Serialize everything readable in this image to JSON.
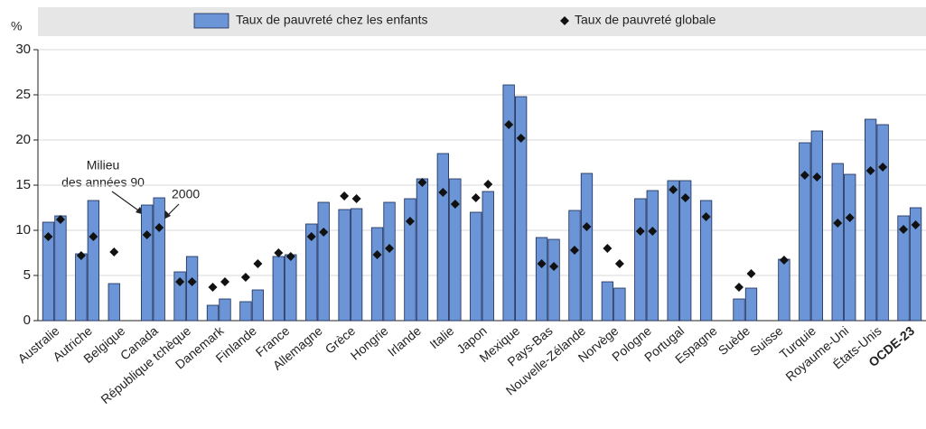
{
  "chart_data": {
    "type": "bar",
    "unit_label": "%",
    "categories": [
      "Australie",
      "Autriche",
      "Belgique",
      "Canada",
      "République tchèque",
      "Danemark",
      "Finlande",
      "France",
      "Allemagne",
      "Grèce",
      "Hongrie",
      "Irlande",
      "Italie",
      "Japon",
      "Mexique",
      "Pays-Bas",
      "Nouvelle-Zélande",
      "Norvège",
      "Pologne",
      "Portugal",
      "Espagne",
      "Suède",
      "Suisse",
      "Turquie",
      "Royaume-Uni",
      "États-Unis",
      "OCDE-23"
    ],
    "series": [
      {
        "name": "Taux de pauvreté chez les enfants",
        "type": "bar",
        "color": "#6b95d6",
        "values": [
          [
            10.9,
            11.6
          ],
          [
            7.4,
            13.3
          ],
          [
            4.1,
            null
          ],
          [
            12.8,
            13.6
          ],
          [
            5.4,
            7.1
          ],
          [
            1.7,
            2.4
          ],
          [
            2.1,
            3.4
          ],
          [
            7.1,
            7.3
          ],
          [
            10.7,
            13.1
          ],
          [
            12.3,
            12.4
          ],
          [
            10.3,
            13.1
          ],
          [
            13.5,
            15.7
          ],
          [
            18.5,
            15.7
          ],
          [
            12.0,
            14.3
          ],
          [
            26.1,
            24.8
          ],
          [
            9.2,
            9.0
          ],
          [
            12.2,
            16.3
          ],
          [
            4.3,
            3.6
          ],
          [
            13.5,
            14.4
          ],
          [
            15.5,
            15.5
          ],
          [
            13.3,
            null
          ],
          [
            2.4,
            3.6
          ],
          [
            null,
            6.8
          ],
          [
            19.7,
            21.0
          ],
          [
            17.4,
            16.2
          ],
          [
            22.3,
            21.7
          ],
          [
            11.6,
            12.5
          ]
        ]
      },
      {
        "name": "Taux de pauvreté globale",
        "type": "scatter",
        "color": "#111111",
        "values": [
          [
            9.3,
            11.2
          ],
          [
            7.2,
            9.3
          ],
          [
            7.6,
            null
          ],
          [
            9.5,
            10.3
          ],
          [
            4.3,
            4.3
          ],
          [
            3.7,
            4.3
          ],
          [
            4.8,
            6.3
          ],
          [
            7.5,
            7.1
          ],
          [
            9.3,
            9.8
          ],
          [
            13.8,
            13.5
          ],
          [
            7.3,
            8.0
          ],
          [
            11.0,
            15.3
          ],
          [
            14.2,
            12.9
          ],
          [
            13.6,
            15.1
          ],
          [
            21.7,
            20.2
          ],
          [
            6.3,
            6.0
          ],
          [
            7.8,
            10.4
          ],
          [
            8.0,
            6.3
          ],
          [
            9.9,
            9.9
          ],
          [
            14.5,
            13.6
          ],
          [
            11.5,
            null
          ],
          [
            3.7,
            5.2
          ],
          [
            null,
            6.7
          ],
          [
            16.1,
            15.9
          ],
          [
            10.8,
            11.4
          ],
          [
            16.6,
            17.0
          ],
          [
            10.1,
            10.6
          ]
        ]
      }
    ],
    "annotations": [
      [
        "Milieu",
        "des années 90"
      ],
      "2000"
    ],
    "ylim": [
      0,
      30
    ],
    "yticks": [
      0,
      5,
      10,
      15,
      20,
      25,
      30
    ],
    "grid": true,
    "legend": "top"
  }
}
